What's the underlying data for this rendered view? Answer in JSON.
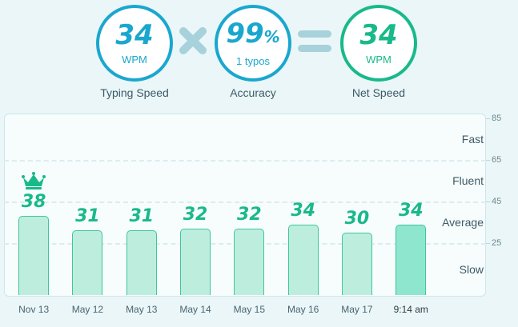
{
  "stats": {
    "typing_speed": {
      "value": "34",
      "unit": "WPM",
      "caption": "Typing Speed"
    },
    "accuracy": {
      "value": "99",
      "percent": "%",
      "sub": "1 typos",
      "caption": "Accuracy"
    },
    "net_speed": {
      "value": "34",
      "unit": "WPM",
      "caption": "Net Speed"
    }
  },
  "chart_data": {
    "type": "bar",
    "categories": [
      "Nov 13",
      "May 12",
      "May 13",
      "May 14",
      "May 15",
      "May 16",
      "May 17",
      "9:14 am"
    ],
    "values": [
      38,
      31,
      31,
      32,
      32,
      34,
      30,
      34
    ],
    "value_labels": [
      "38",
      "31",
      "31",
      "32",
      "32",
      "34",
      "30",
      "34"
    ],
    "y_ticks": [
      "85",
      "65",
      "45",
      "25"
    ],
    "ylim": [
      0,
      85
    ],
    "zones": [
      "Fast",
      "Fluent",
      "Average",
      "Slow"
    ],
    "zone_values": [
      75,
      55,
      35,
      12.5
    ],
    "best_index": 0,
    "current_index": 7,
    "colors": {
      "bar_fill": "#bdeedd",
      "bar_current_fill": "#8fe6cf",
      "bar_border": "#3cc79a",
      "value_text": "#19b98a",
      "accent_blue": "#1aa7cf"
    }
  }
}
